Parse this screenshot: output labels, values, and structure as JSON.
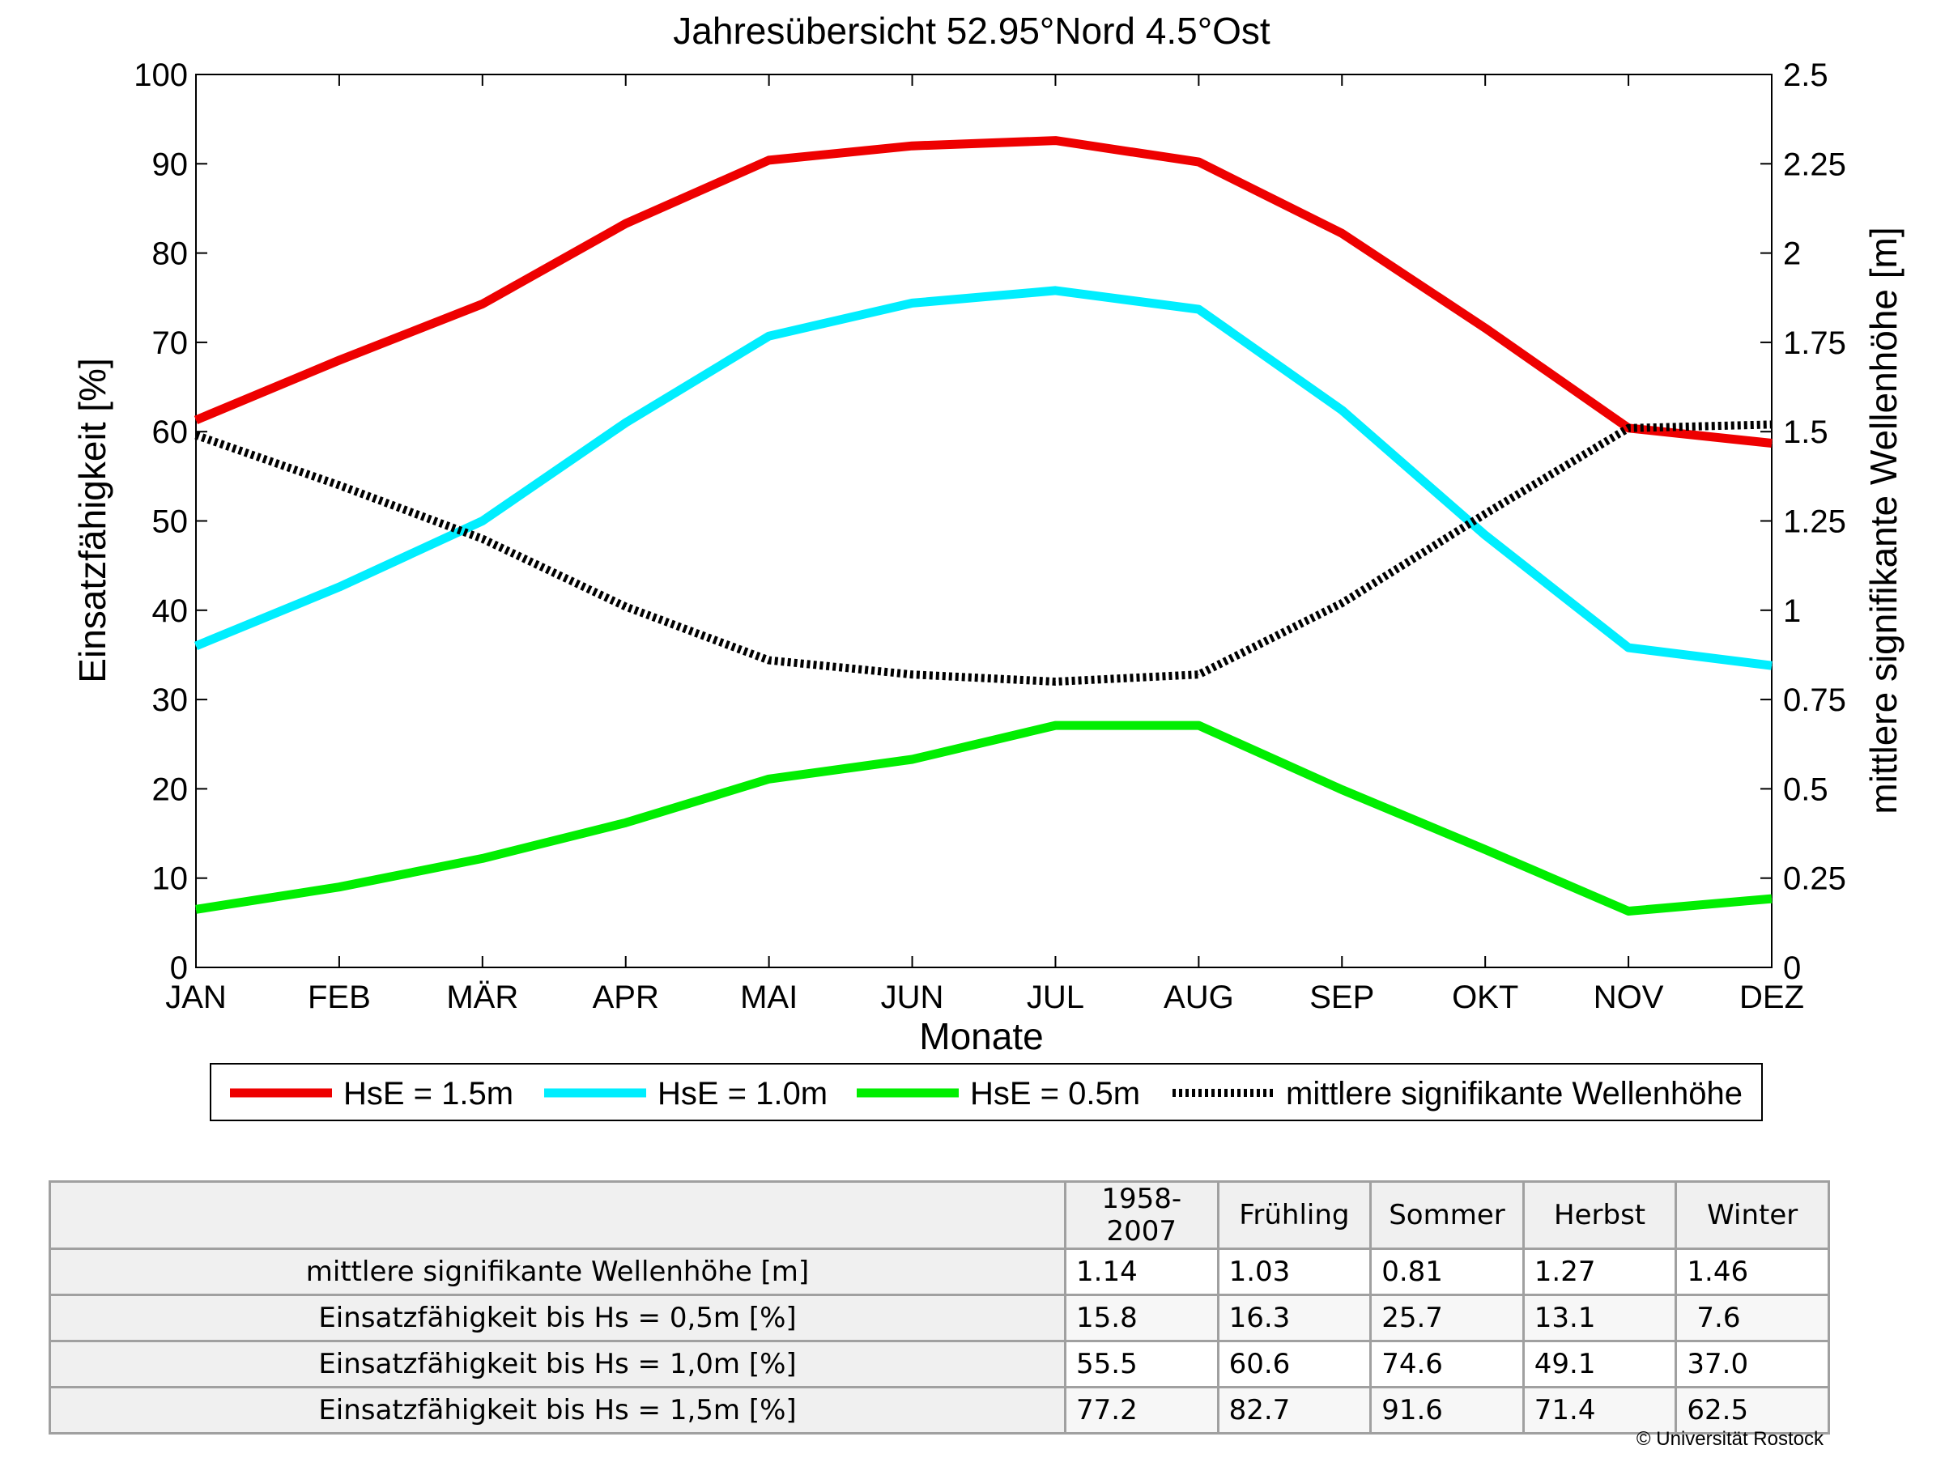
{
  "chart_data": {
    "type": "line",
    "title": "Jahresübersicht  52.95°Nord  4.5°Ost",
    "xlabel": "Monate",
    "ylabel": "Einsatzfähigkeit [%]",
    "y2label": "mittlere signifikante Wellenhöhe [m]",
    "categories": [
      "JAN",
      "FEB",
      "MÄR",
      "APR",
      "MAI",
      "JUN",
      "JUL",
      "AUG",
      "SEP",
      "OKT",
      "NOV",
      "DEZ"
    ],
    "ylim": [
      0,
      100
    ],
    "yticks": [
      "0",
      "10",
      "20",
      "30",
      "40",
      "50",
      "60",
      "70",
      "80",
      "90",
      "100"
    ],
    "y2lim": [
      0,
      2.5
    ],
    "y2ticks": [
      "0",
      "0.25",
      "0.5",
      "0.75",
      "1",
      "1.25",
      "1.5",
      "1.75",
      "2",
      "2.25",
      "2.5"
    ],
    "grid": false,
    "legend_position": "bottom",
    "series": [
      {
        "name": "HsE = 1.5m",
        "axis": "left",
        "color": "#ee0000",
        "style": "solid",
        "values": [
          61.3,
          68.0,
          74.3,
          83.3,
          90.4,
          92.0,
          92.6,
          90.2,
          82.2,
          71.6,
          60.4,
          58.7
        ]
      },
      {
        "name": "HsE = 1.0m",
        "axis": "left",
        "color": "#00eeff",
        "style": "solid",
        "values": [
          36.0,
          42.6,
          50.0,
          61.0,
          70.7,
          74.4,
          75.8,
          73.7,
          62.4,
          48.4,
          35.8,
          33.8
        ]
      },
      {
        "name": "HsE = 0.5m",
        "axis": "left",
        "color": "#00ee00",
        "style": "solid",
        "values": [
          6.5,
          9.0,
          12.2,
          16.2,
          21.1,
          23.3,
          27.1,
          27.1,
          19.9,
          13.2,
          6.3,
          7.7
        ]
      },
      {
        "name": "mittlere signifikante Wellenhöhe",
        "axis": "right",
        "color": "#000000",
        "style": "dotted",
        "values": [
          1.49,
          1.35,
          1.2,
          1.01,
          0.86,
          0.82,
          0.8,
          0.82,
          1.02,
          1.27,
          1.51,
          1.52
        ]
      }
    ]
  },
  "table": {
    "columns": [
      "1958-2007",
      "Frühling",
      "Sommer",
      "Herbst",
      "Winter"
    ],
    "rows": [
      {
        "label": "mittlere signifikante Wellenhöhe [m]",
        "cells": [
          "1.14",
          "1.03",
          "0.81",
          "1.27",
          "1.46"
        ]
      },
      {
        "label": "Einsatzfähigkeit bis Hs = 0,5m [%]",
        "cells": [
          "15.8",
          "16.3",
          "25.7",
          "13.1",
          " 7.6"
        ]
      },
      {
        "label": "Einsatzfähigkeit bis Hs = 1,0m [%]",
        "cells": [
          "55.5",
          "60.6",
          "74.6",
          "49.1",
          "37.0"
        ]
      },
      {
        "label": "Einsatzfähigkeit bis Hs = 1,5m [%]",
        "cells": [
          "77.2",
          "82.7",
          "91.6",
          "71.4",
          "62.5"
        ]
      }
    ]
  },
  "copyright": "© Universität Rostock"
}
